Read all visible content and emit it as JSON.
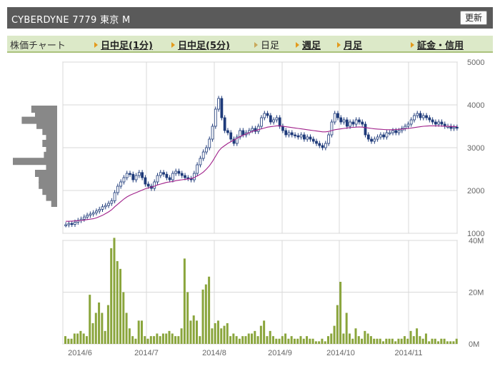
{
  "header": {
    "title": "CYBERDYNE  7779  東京 M",
    "refresh_label": "更新"
  },
  "tabs": {
    "label": "株価チャート",
    "items": [
      {
        "label": "日中足(1分)",
        "current": false
      },
      {
        "label": "日中足(5分)",
        "current": false
      },
      {
        "label": "日足",
        "current": true
      },
      {
        "label": "週足",
        "current": false
      },
      {
        "label": "月足",
        "current": false
      },
      {
        "label": "証金・信用",
        "current": false
      }
    ]
  },
  "chart_data": [
    {
      "type": "candlestick",
      "ylim": [
        1000,
        5000
      ],
      "yticks": [
        "5000",
        "4000",
        "3000",
        "2000",
        "1000"
      ],
      "xticks": [
        "2014/6",
        "2014/7",
        "2014/8",
        "2014/9",
        "2014/10",
        "2014/11"
      ],
      "grid": true,
      "colors": {
        "candle": "#1f3b7a",
        "moving_average": "#a0208a",
        "volume_profile": "#888888"
      },
      "close": [
        1200,
        1230,
        1210,
        1260,
        1300,
        1330,
        1380,
        1420,
        1450,
        1480,
        1520,
        1560,
        1620,
        1650,
        1700,
        1760,
        1950,
        2100,
        2200,
        2300,
        2400,
        2380,
        2250,
        2350,
        2420,
        2300,
        2150,
        2100,
        2050,
        2200,
        2350,
        2420,
        2380,
        2300,
        2250,
        2400,
        2450,
        2400,
        2350,
        2300,
        2280,
        2250,
        2400,
        2600,
        2750,
        2900,
        3000,
        3200,
        3500,
        3900,
        4150,
        3700,
        3400,
        3350,
        3200,
        3100,
        3250,
        3400,
        3300,
        3350,
        3400,
        3450,
        3380,
        3500,
        3700,
        3800,
        3750,
        3600,
        3650,
        3700,
        3500,
        3400,
        3300,
        3350,
        3300,
        3280,
        3250,
        3300,
        3200,
        3250,
        3200,
        3150,
        3100,
        3050,
        3000,
        3100,
        3300,
        3600,
        3800,
        3700,
        3600,
        3650,
        3500,
        3600,
        3550,
        3650,
        3600,
        3550,
        3300,
        3200,
        3150,
        3200,
        3250,
        3300,
        3250,
        3350,
        3350,
        3400,
        3350,
        3400,
        3450,
        3500,
        3550,
        3650,
        3750,
        3800,
        3700,
        3750,
        3700,
        3650,
        3600,
        3550,
        3600,
        3550,
        3500,
        3500,
        3450,
        3480,
        3460
      ],
      "moving_average": [
        1280,
        1280,
        1285,
        1290,
        1295,
        1300,
        1310,
        1320,
        1330,
        1340,
        1360,
        1390,
        1420,
        1460,
        1500,
        1550,
        1620,
        1680,
        1740,
        1800,
        1850,
        1890,
        1920,
        1950,
        1980,
        2010,
        2040,
        2060,
        2080,
        2100,
        2130,
        2150,
        2170,
        2190,
        2200,
        2210,
        2230,
        2240,
        2250,
        2260,
        2270,
        2280,
        2300,
        2340,
        2380,
        2430,
        2500,
        2580,
        2680,
        2800,
        2920,
        3000,
        3050,
        3100,
        3140,
        3180,
        3220,
        3260,
        3290,
        3320,
        3350,
        3380,
        3400,
        3420,
        3440,
        3460,
        3480,
        3490,
        3500,
        3510,
        3510,
        3500,
        3490,
        3480,
        3470,
        3460,
        3450,
        3440,
        3430,
        3420,
        3410,
        3400,
        3390,
        3380,
        3370,
        3370,
        3380,
        3400,
        3420,
        3430,
        3440,
        3450,
        3460,
        3470,
        3475,
        3480,
        3485,
        3480,
        3470,
        3460,
        3450,
        3440,
        3435,
        3430,
        3425,
        3420,
        3420,
        3420,
        3425,
        3430,
        3435,
        3440,
        3450,
        3460,
        3470,
        3480,
        3490,
        3500,
        3505,
        3510,
        3510,
        3510,
        3508,
        3505,
        3500,
        3498,
        3496,
        3494,
        3492
      ],
      "volume_profile": [
        {
          "price": 3900,
          "volume": 35
        },
        {
          "price": 3760,
          "volume": 30
        },
        {
          "price": 3640,
          "volume": 48
        },
        {
          "price": 3520,
          "volume": 28
        },
        {
          "price": 3380,
          "volume": 20
        },
        {
          "price": 3240,
          "volume": 15
        },
        {
          "price": 3100,
          "volume": 20
        },
        {
          "price": 2960,
          "volume": 15
        },
        {
          "price": 2820,
          "volume": 18
        },
        {
          "price": 2680,
          "volume": 60
        },
        {
          "price": 2540,
          "volume": 15
        },
        {
          "price": 2400,
          "volume": 30
        },
        {
          "price": 2260,
          "volume": 25
        },
        {
          "price": 2120,
          "volume": 25
        },
        {
          "price": 1980,
          "volume": 20
        },
        {
          "price": 1840,
          "volume": 15
        },
        {
          "price": 1700,
          "volume": 8
        }
      ]
    },
    {
      "type": "bar",
      "ylim": [
        0,
        40
      ],
      "unit": "M",
      "yticks": [
        "40M",
        "20M",
        "0M"
      ],
      "colors": {
        "bar": "#8aa53c"
      },
      "values": [
        3,
        2,
        2,
        4,
        4,
        5,
        4,
        3,
        19,
        8,
        12,
        16,
        12,
        5,
        15,
        37,
        41,
        32,
        29,
        20,
        12,
        6,
        3,
        2,
        9,
        9,
        3,
        2,
        3,
        3,
        4,
        3,
        4,
        4,
        5,
        4,
        3,
        3,
        6,
        33,
        20,
        9,
        11,
        9,
        3,
        21,
        23,
        26,
        6,
        8,
        9,
        6,
        7,
        8,
        3,
        4,
        3,
        2,
        3,
        3,
        4,
        4,
        5,
        3,
        7,
        9,
        3,
        5,
        3,
        2,
        2,
        3,
        4,
        2,
        3,
        2,
        2,
        3,
        2,
        3,
        2,
        2,
        1,
        1,
        2,
        1,
        3,
        4,
        7,
        15,
        24,
        4,
        12,
        4,
        2,
        6,
        3,
        2,
        5,
        4,
        3,
        2,
        2,
        2,
        1,
        2,
        2,
        2,
        1,
        2,
        2,
        3,
        2,
        5,
        3,
        6,
        3,
        2,
        4,
        1,
        2,
        2,
        1,
        2,
        2,
        1,
        1,
        1,
        2
      ]
    }
  ]
}
